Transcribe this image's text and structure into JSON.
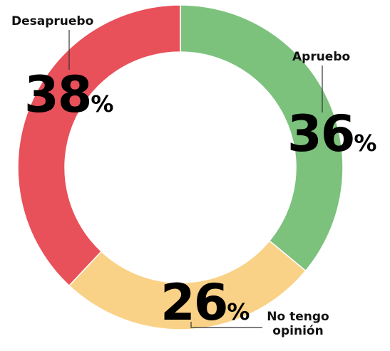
{
  "chart_data": {
    "type": "donut",
    "categories": [
      "Apruebo",
      "No tengo opinión",
      "Desapruebo"
    ],
    "values": [
      36,
      26,
      38
    ],
    "unit": "%",
    "colors": [
      "#7cc27d",
      "#fad287",
      "#e8505a"
    ]
  }
}
